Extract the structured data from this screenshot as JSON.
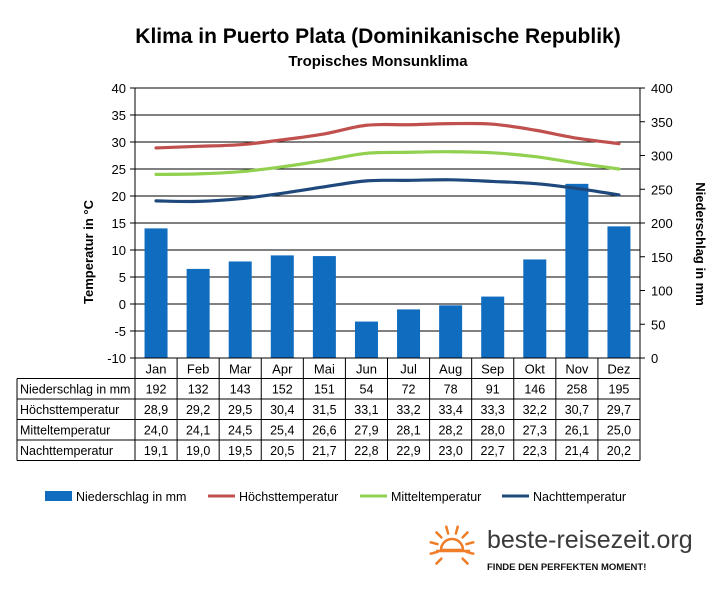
{
  "chart_data": {
    "type": "bar+line",
    "title": "Klima in Puerto Plata (Dominikanische Republik)",
    "subtitle": "Tropisches Monsunklima",
    "ylabel_left": "Temperatur in °C",
    "ylabel_right": "Niederschlag in mm",
    "ylim_left": [
      -10,
      40
    ],
    "ylim_right": [
      0,
      400
    ],
    "yticks_left": [
      "40",
      "35",
      "30",
      "25",
      "20",
      "15",
      "10",
      "5",
      "0",
      "-5",
      "-10"
    ],
    "yticks_right": [
      "400",
      "350",
      "300",
      "250",
      "200",
      "150",
      "100",
      "50",
      "0"
    ],
    "grid": true,
    "legend_position": "bottom",
    "categories": [
      "Jan",
      "Feb",
      "Mar",
      "Apr",
      "Mai",
      "Jun",
      "Jul",
      "Aug",
      "Sep",
      "Okt",
      "Nov",
      "Dez"
    ],
    "series": [
      {
        "name": "Niederschlag in mm",
        "type": "bar",
        "axis": "right",
        "color": "#0f6cbf",
        "values": [
          192,
          132,
          143,
          152,
          151,
          54,
          72,
          78,
          91,
          146,
          258,
          195
        ],
        "labels": [
          "192",
          "132",
          "143",
          "152",
          "151",
          "54",
          "72",
          "78",
          "91",
          "146",
          "258",
          "195"
        ]
      },
      {
        "name": "Höchsttemperatur",
        "type": "line",
        "axis": "left",
        "color": "#c0504d",
        "values": [
          28.9,
          29.2,
          29.5,
          30.4,
          31.5,
          33.1,
          33.2,
          33.4,
          33.3,
          32.2,
          30.7,
          29.7
        ],
        "labels": [
          "28,9",
          "29,2",
          "29,5",
          "30,4",
          "31,5",
          "33,1",
          "33,2",
          "33,4",
          "33,3",
          "32,2",
          "30,7",
          "29,7"
        ]
      },
      {
        "name": "Mitteltemperatur",
        "type": "line",
        "axis": "left",
        "color": "#92d050",
        "values": [
          24.0,
          24.1,
          24.5,
          25.4,
          26.6,
          27.9,
          28.1,
          28.2,
          28.0,
          27.3,
          26.1,
          25.0
        ],
        "labels": [
          "24,0",
          "24,1",
          "24,5",
          "25,4",
          "26,6",
          "27,9",
          "28,1",
          "28,2",
          "28,0",
          "27,3",
          "26,1",
          "25,0"
        ]
      },
      {
        "name": "Nachttemperatur",
        "type": "line",
        "axis": "left",
        "color": "#1f497d",
        "values": [
          19.1,
          19.0,
          19.5,
          20.5,
          21.7,
          22.8,
          22.9,
          23.0,
          22.7,
          22.3,
          21.4,
          20.2
        ],
        "labels": [
          "19,1",
          "19,0",
          "19,5",
          "20,5",
          "21,7",
          "22,8",
          "22,9",
          "23,0",
          "22,7",
          "22,3",
          "21,4",
          "20,2"
        ]
      }
    ]
  },
  "branding": {
    "site": "beste-reisezeit.org",
    "slogan": "FINDE DEN PERFEKTEN MOMENT!",
    "sun_color": "#f07d28"
  }
}
